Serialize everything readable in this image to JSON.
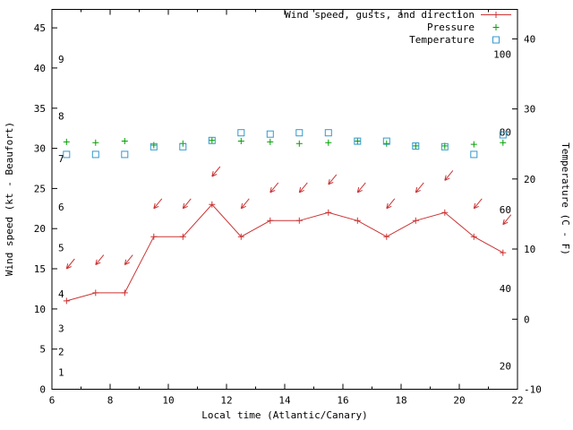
{
  "page": {
    "background": "#ffffff"
  },
  "chart_data": {
    "type": "line",
    "title": "",
    "xlabel": "Local time (Atlantic/Canary)",
    "ylabel": "Wind speed (kt - Beaufort)",
    "y2label": "Temperature (C - F)",
    "legend_position": "top-right-inside",
    "grid": false,
    "colors": {
      "wind": "#cc3333",
      "pressure": "#00a000",
      "temperature": "#3399cc",
      "axis": "#000000"
    },
    "legend": [
      {
        "label": "Wind speed, gusts, and direction",
        "marker": "line-plus",
        "color": "#cc3333"
      },
      {
        "label": "Pressure",
        "marker": "plus",
        "color": "#00a000"
      },
      {
        "label": "Temperature",
        "marker": "square",
        "color": "#3399cc"
      }
    ],
    "x_range": [
      6,
      22
    ],
    "x_ticks": [
      6,
      8,
      10,
      12,
      14,
      16,
      18,
      20,
      22
    ],
    "x_minor_ticks": [
      7,
      9,
      11,
      13,
      15,
      17,
      19,
      21
    ],
    "y_axis": {
      "range": [
        0,
        47.3
      ],
      "ticks": [
        0,
        5,
        10,
        15,
        20,
        25,
        30,
        35,
        40,
        45
      ]
    },
    "y2_axis": {
      "range": [
        -10,
        44.2
      ],
      "ticks": [
        -10,
        0,
        10,
        20,
        30,
        40
      ]
    },
    "beaufort_scale_labels": [
      {
        "label": "1",
        "kt": 2.1
      },
      {
        "label": "2",
        "kt": 4.7
      },
      {
        "label": "3",
        "kt": 7.6
      },
      {
        "label": "4",
        "kt": 11.9
      },
      {
        "label": "5",
        "kt": 17.6
      },
      {
        "label": "6",
        "kt": 22.7
      },
      {
        "label": "7",
        "kt": 28.7
      },
      {
        "label": "8",
        "kt": 34.0
      },
      {
        "label": "9",
        "kt": 41.1
      }
    ],
    "fahrenheit_scale_labels": [
      {
        "label": "20",
        "c": -6.7
      },
      {
        "label": "40",
        "c": 4.4
      },
      {
        "label": "60",
        "c": 15.6
      },
      {
        "label": "80",
        "c": 26.7
      },
      {
        "label": "100",
        "c": 37.8
      }
    ],
    "x": [
      6.5,
      7.5,
      8.5,
      9.5,
      10.5,
      11.5,
      12.5,
      13.5,
      14.5,
      15.5,
      16.5,
      17.5,
      18.5,
      19.5,
      20.5,
      21.5
    ],
    "wind_speed_kt": [
      11,
      12,
      12,
      19,
      19,
      23,
      19,
      21,
      21,
      22,
      21,
      19,
      21,
      22,
      19,
      17
    ],
    "wind_gust_kt": [
      15,
      15.5,
      15.5,
      22.5,
      22.5,
      26.5,
      22.5,
      24.5,
      24.5,
      25.5,
      24.5,
      22.5,
      24.5,
      26,
      22.5,
      20.5
    ],
    "pressure": [
      30.8,
      30.7,
      30.9,
      30.4,
      30.6,
      31.0,
      30.9,
      30.8,
      30.6,
      30.7,
      30.9,
      30.6,
      30.3,
      30.3,
      30.5,
      30.7
    ],
    "temperature_c": [
      23.5,
      23.5,
      23.5,
      24.6,
      24.6,
      25.5,
      26.6,
      26.4,
      26.6,
      26.6,
      25.4,
      25.4,
      24.7,
      24.6,
      23.5,
      26.3
    ]
  }
}
